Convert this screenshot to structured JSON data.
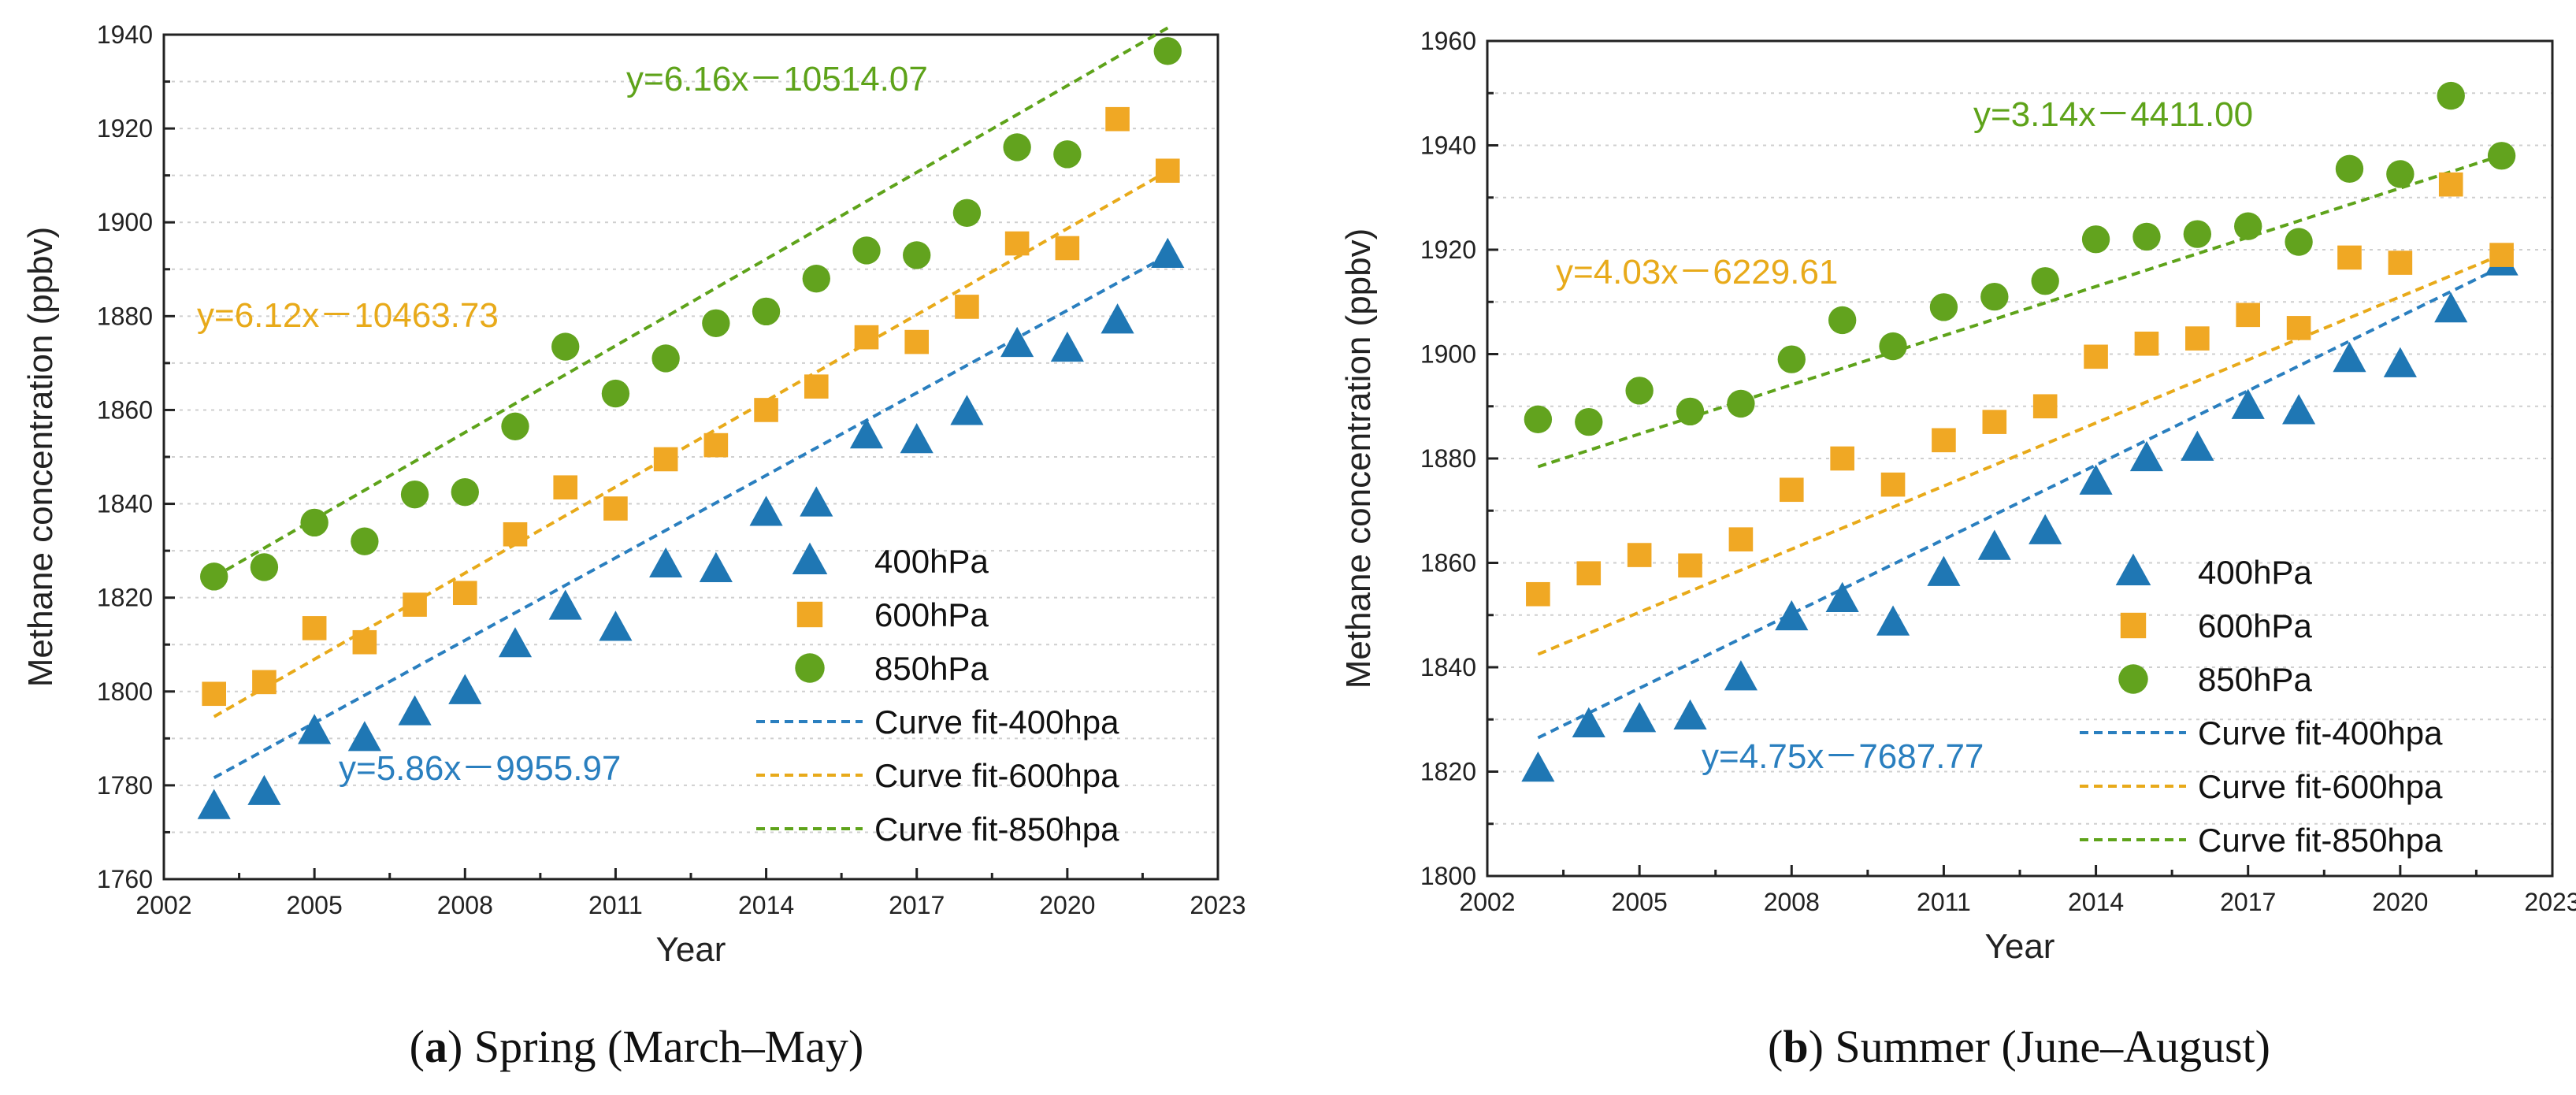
{
  "colors": {
    "p400": "#1f77b4",
    "p600": "#f0a824",
    "p850": "#62a31e",
    "fit400": "#2a7fbf",
    "fit600": "#e8aa1a",
    "fit850": "#5ea31a"
  },
  "legend": {
    "s400": "400hPa",
    "s600": "600hPa",
    "s850": "850hPa",
    "f400": "Curve fit-400hpa",
    "f600": "Curve fit-600hpa",
    "f850": "Curve fit-850hpa"
  },
  "chart_data": [
    {
      "id": "spring",
      "type": "scatter",
      "caption_letter": "a",
      "caption_text": " Spring (March–May)",
      "xlabel": "Year",
      "ylabel": "Methane concentration (ppbv)",
      "xlim": [
        2002,
        2023
      ],
      "ylim": [
        1760,
        1940
      ],
      "xticks": [
        2002,
        2005,
        2008,
        2011,
        2014,
        2017,
        2020,
        2023
      ],
      "yticks": [
        1760,
        1780,
        1800,
        1820,
        1840,
        1860,
        1880,
        1900,
        1920,
        1940
      ],
      "x": [
        2003,
        2004,
        2005,
        2006,
        2007,
        2008,
        2009,
        2010,
        2011,
        2012,
        2013,
        2014,
        2015,
        2016,
        2017,
        2018,
        2019,
        2020,
        2021,
        2022
      ],
      "series": [
        {
          "name": "400hPa",
          "marker": "triangle",
          "values": [
            1775.5,
            1778.5,
            1791.5,
            1790,
            1795.5,
            1800,
            1810,
            1818,
            1813.5,
            1827,
            1826,
            1838,
            1840,
            1854.5,
            1853.5,
            1859.5,
            1874,
            1873,
            1879,
            1893
          ]
        },
        {
          "name": "600hPa",
          "marker": "square",
          "values": [
            1799.5,
            1802,
            1813.5,
            1810.5,
            1818.5,
            1821,
            1833.5,
            1843.5,
            1839,
            1849.5,
            1852.5,
            1860,
            1865,
            1875.5,
            1874.5,
            1882,
            1895.5,
            1894.5,
            1922,
            1911
          ]
        },
        {
          "name": "850hPa",
          "marker": "circle",
          "values": [
            1824.5,
            1826.5,
            1836,
            1832,
            1842,
            1842.5,
            1856.5,
            1873.5,
            1863.5,
            1871,
            1878.5,
            1881,
            1888,
            1894,
            1893,
            1902,
            1916,
            1914.5,
            null,
            1936.5
          ]
        }
      ],
      "fits": [
        {
          "name": "Curve fit-400hpa",
          "slope": 5.86,
          "intercept": -9955.97,
          "equation": "y=5.86x－9955.97",
          "x_range": [
            2003,
            2022
          ]
        },
        {
          "name": "Curve fit-600hpa",
          "slope": 6.12,
          "intercept": -10463.73,
          "equation": "y=6.12x－10463.73",
          "x_range": [
            2003,
            2022
          ]
        },
        {
          "name": "Curve fit-850hpa",
          "slope": 6.16,
          "intercept": -10514.07,
          "equation": "y=6.16x－10514.07",
          "x_range": [
            2003,
            2022
          ]
        }
      ]
    },
    {
      "id": "summer",
      "type": "scatter",
      "caption_letter": "b",
      "caption_text": " Summer (June–August)",
      "xlabel": "Year",
      "ylabel": "Methane concentration (ppbv)",
      "xlim": [
        2002,
        2023
      ],
      "ylim": [
        1800,
        1960
      ],
      "xticks": [
        2002,
        2005,
        2008,
        2011,
        2014,
        2017,
        2020,
        2023
      ],
      "yticks": [
        1800,
        1820,
        1840,
        1860,
        1880,
        1900,
        1920,
        1940,
        1960
      ],
      "x": [
        2003,
        2004,
        2005,
        2006,
        2007,
        2008,
        2009,
        2010,
        2011,
        2012,
        2013,
        2014,
        2015,
        2016,
        2017,
        2018,
        2019,
        2020,
        2021,
        2022
      ],
      "series": [
        {
          "name": "400hPa",
          "marker": "triangle",
          "values": [
            1820.5,
            1829,
            1830,
            1830.5,
            1838,
            1849.5,
            1853,
            1848.5,
            1858,
            1863,
            1866,
            1875.5,
            1880,
            1882,
            1890,
            1889,
            1899,
            1898,
            1908.5,
            1917.5
          ]
        },
        {
          "name": "600hPa",
          "marker": "square",
          "values": [
            1854,
            1858,
            1861.5,
            1859.5,
            1864.5,
            1874,
            1880,
            1875,
            1883.5,
            1887,
            1890,
            1899.5,
            1902,
            1903,
            1907.5,
            1905,
            1918.5,
            1917.5,
            1932.5,
            1919
          ]
        },
        {
          "name": "850hPa",
          "marker": "circle",
          "values": [
            1887.5,
            1887,
            1893,
            1889,
            1890.5,
            1899,
            1906.5,
            1901.5,
            1909,
            1911,
            1914,
            1922,
            1922.5,
            1923,
            1924.5,
            1921.5,
            1935.5,
            1934.5,
            1949.5,
            1938
          ]
        }
      ],
      "fits": [
        {
          "name": "Curve fit-400hpa",
          "slope": 4.75,
          "intercept": -7687.77,
          "equation": "y=4.75x－7687.77",
          "x_range": [
            2003,
            2022
          ]
        },
        {
          "name": "Curve fit-600hpa",
          "slope": 4.03,
          "intercept": -6229.61,
          "equation": "y=4.03x－6229.61",
          "x_range": [
            2003,
            2022
          ]
        },
        {
          "name": "Curve fit-850hpa",
          "slope": 3.14,
          "intercept": -4411.0,
          "equation": "y=3.14x－4411.00",
          "x_range": [
            2003,
            2022
          ]
        }
      ]
    }
  ]
}
